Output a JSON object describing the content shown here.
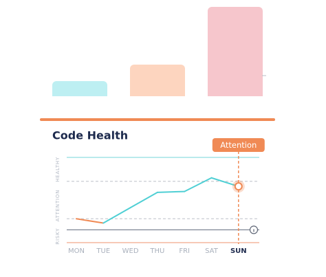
{
  "chart_data": {
    "type": "line",
    "title": "Code Health",
    "categories": [
      "MON",
      "TUE",
      "WED",
      "THU",
      "FRI",
      "SAT",
      "SUN"
    ],
    "series": [
      {
        "name": "Code Health",
        "color": "#4fcfd4",
        "values": [
          28,
          23,
          41,
          59,
          60,
          76,
          66
        ]
      }
    ],
    "segment_colors": [
      "#f08a55",
      "#4fcfd4",
      "#4fcfd4",
      "#4fcfd4",
      "#4fcfd4",
      "#4fcfd4"
    ],
    "ylim": [
      0,
      100
    ],
    "zones": [
      {
        "label": "HEALTHY",
        "from": 72,
        "to": 100
      },
      {
        "label": "ATTENTION",
        "from": 15,
        "to": 72
      },
      {
        "label": "RISKY",
        "from": 0,
        "to": 15
      }
    ],
    "reference_lines": [
      {
        "value": 100,
        "style": "solid",
        "color": "#8fdde0"
      },
      {
        "value": 72,
        "style": "dashed",
        "color": "#c9ccd2"
      },
      {
        "value": 28,
        "style": "dashed",
        "color": "#c9ccd2"
      },
      {
        "value": 15,
        "style": "solid",
        "color": "#7d8594"
      },
      {
        "value": 0,
        "style": "solid",
        "color": "#f2a98a"
      }
    ],
    "highlight": {
      "category_index": 6,
      "label": "Attention",
      "color": "#f08a55"
    }
  }
}
